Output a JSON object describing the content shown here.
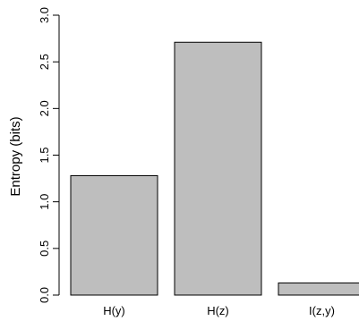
{
  "chart_data": {
    "type": "bar",
    "categories": [
      "H(y)",
      "H(z)",
      "I(z,y)"
    ],
    "values": [
      1.28,
      2.71,
      0.13
    ],
    "ylabel": "Entropy (bits)",
    "ylim": [
      0,
      3.0
    ],
    "yticks": [
      0.0,
      0.5,
      1.0,
      1.5,
      2.0,
      2.5,
      3.0
    ],
    "ytick_labels": [
      "0.0",
      "0.5",
      "1.0",
      "1.5",
      "2.0",
      "2.5",
      "3.0"
    ],
    "grid": false,
    "bar_color": "#bebebe",
    "bar_edge_color": "#000000"
  }
}
